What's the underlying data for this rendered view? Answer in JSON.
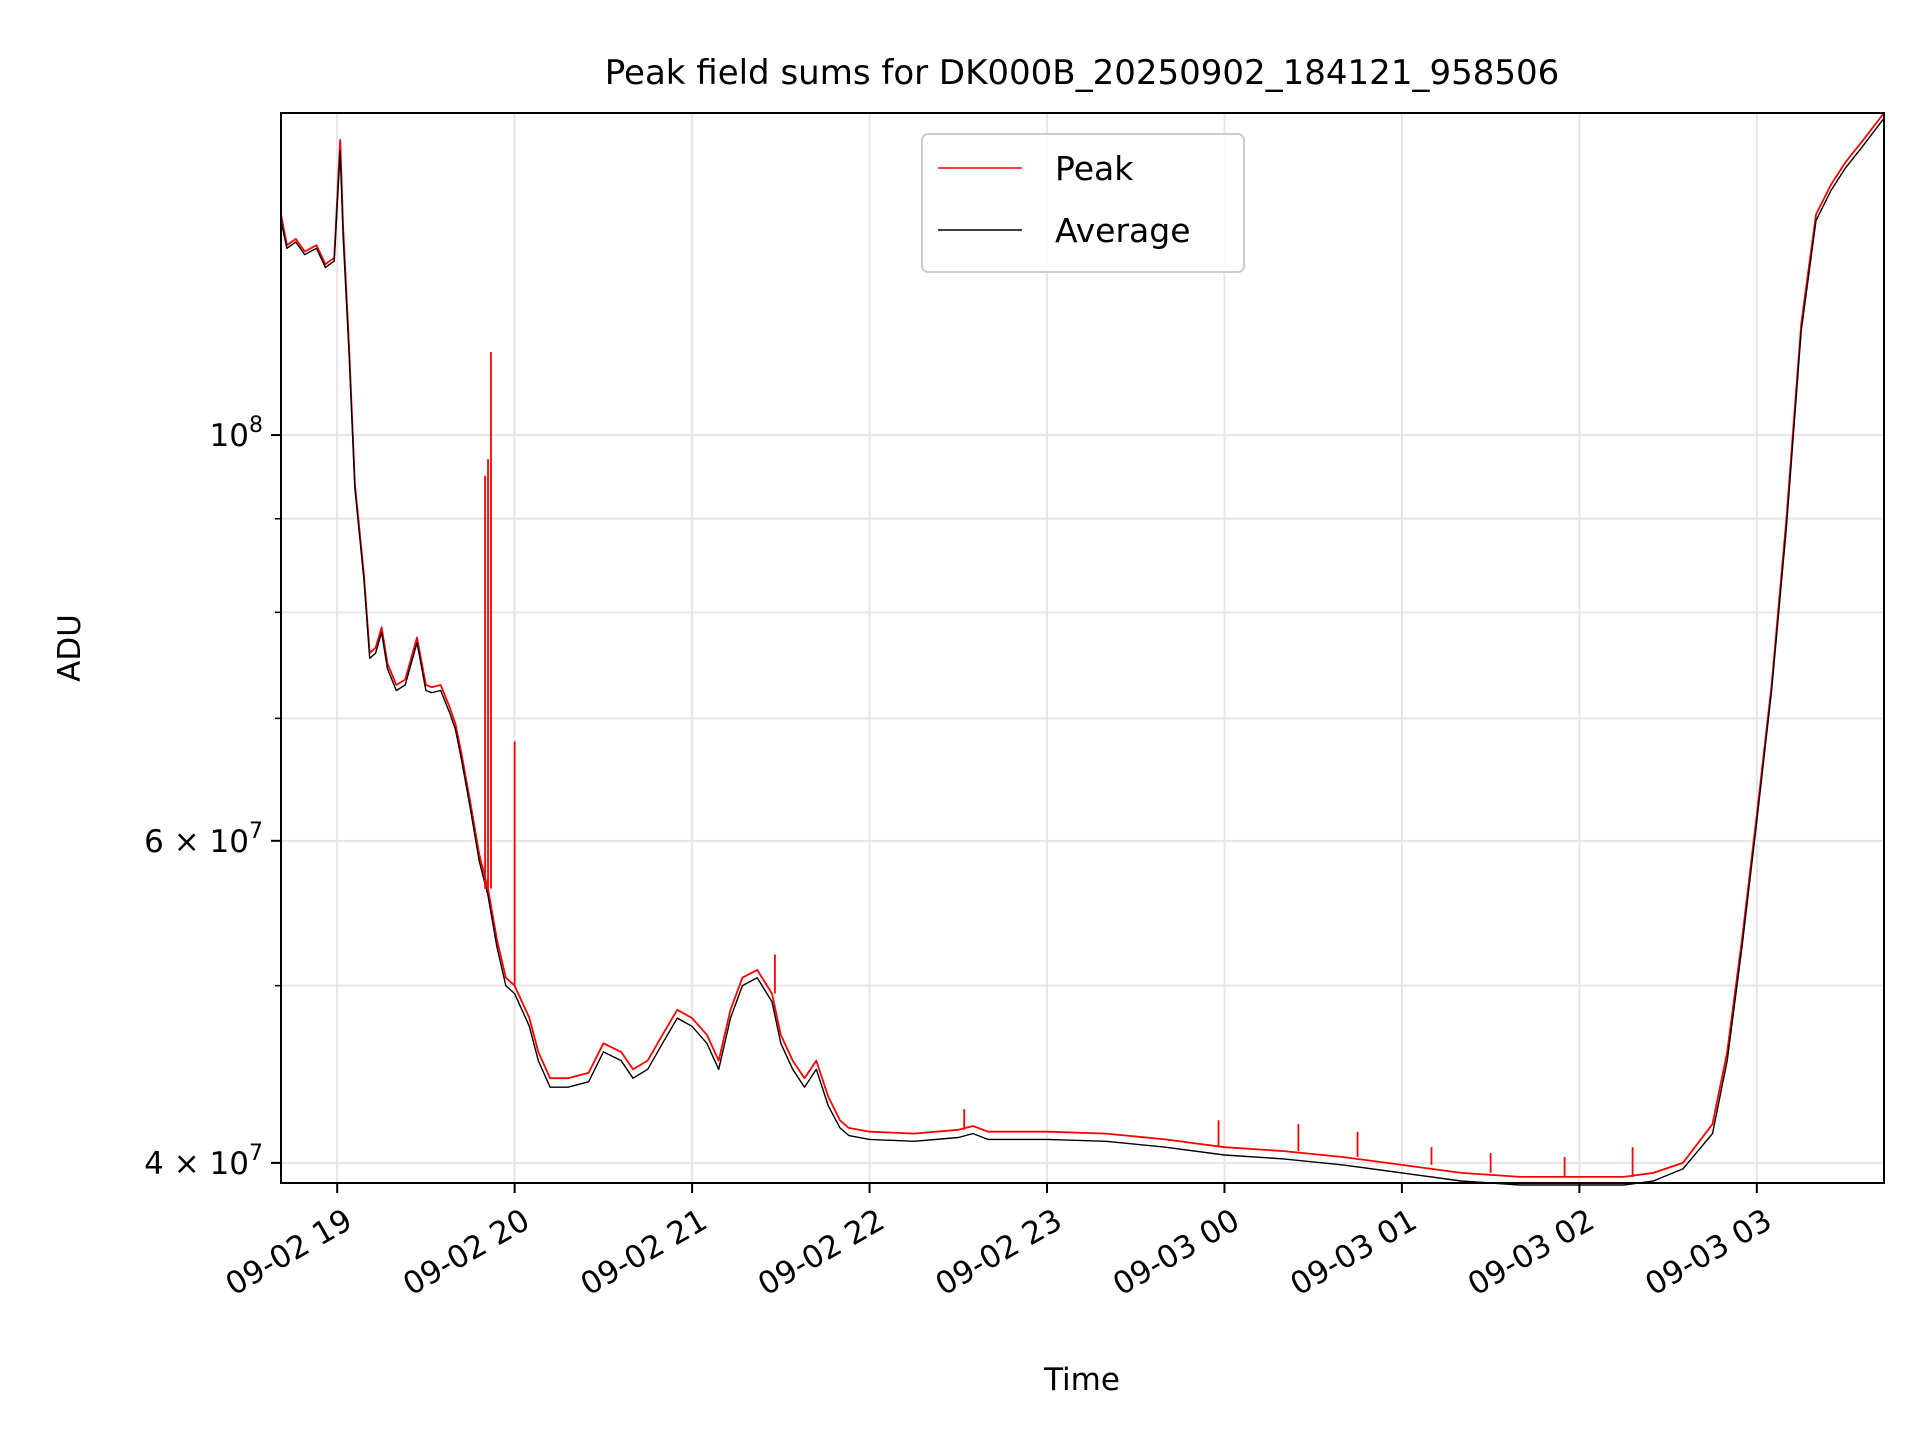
{
  "chart_data": {
    "type": "line",
    "title": "Peak field sums for DK000B_20250902_184121_958506",
    "xlabel": "Time",
    "ylabel": "ADU",
    "y_scale": "log",
    "ylim": [
      39000000,
      150000000
    ],
    "xlim": [
      "2025-09-02 18:41",
      "2025-09-03 03:43"
    ],
    "grid": true,
    "legend_position": "upper center",
    "x_ticks": [
      "09-02 19",
      "09-02 20",
      "09-02 21",
      "09-02 22",
      "09-02 23",
      "09-03 00",
      "09-03 01",
      "09-03 02",
      "09-03 03"
    ],
    "x_tick_times": [
      "2025-09-02 19:00",
      "2025-09-02 20:00",
      "2025-09-02 21:00",
      "2025-09-02 22:00",
      "2025-09-02 23:00",
      "2025-09-03 00:00",
      "2025-09-03 01:00",
      "2025-09-03 02:00",
      "2025-09-03 03:00"
    ],
    "y_major_ticks": [
      {
        "value": 100000000,
        "base": "10",
        "exp": "8"
      },
      {
        "value": 60000000,
        "base": "6 × 10",
        "exp": "7"
      },
      {
        "value": 40000000,
        "base": "4 × 10",
        "exp": "7"
      }
    ],
    "y_minor_ticks": [
      50000000,
      70000000,
      80000000,
      90000000
    ],
    "series": [
      {
        "name": "Peak",
        "color": "#ff0000",
        "x": [
          "2025-09-02 18:41",
          "2025-09-02 18:43",
          "2025-09-02 18:46",
          "2025-09-02 18:49",
          "2025-09-02 18:53",
          "2025-09-02 18:56",
          "2025-09-02 18:59",
          "2025-09-02 19:01",
          "2025-09-02 19:02",
          "2025-09-02 19:04",
          "2025-09-02 19:06",
          "2025-09-02 19:09",
          "2025-09-02 19:11",
          "2025-09-02 19:13",
          "2025-09-02 19:15",
          "2025-09-02 19:17",
          "2025-09-02 19:20",
          "2025-09-02 19:23",
          "2025-09-02 19:27",
          "2025-09-02 19:30",
          "2025-09-02 19:32",
          "2025-09-02 19:35",
          "2025-09-02 19:38",
          "2025-09-02 19:40",
          "2025-09-02 19:42",
          "2025-09-02 19:45",
          "2025-09-02 19:48",
          "2025-09-02 19:51",
          "2025-09-02 19:54",
          "2025-09-02 19:57",
          "2025-09-02 20:00",
          "2025-09-02 20:05",
          "2025-09-02 20:08",
          "2025-09-02 20:12",
          "2025-09-02 20:18",
          "2025-09-02 20:25",
          "2025-09-02 20:30",
          "2025-09-02 20:36",
          "2025-09-02 20:40",
          "2025-09-02 20:45",
          "2025-09-02 20:50",
          "2025-09-02 20:55",
          "2025-09-02 21:00",
          "2025-09-02 21:05",
          "2025-09-02 21:09",
          "2025-09-02 21:13",
          "2025-09-02 21:17",
          "2025-09-02 21:22",
          "2025-09-02 21:27",
          "2025-09-02 21:30",
          "2025-09-02 21:34",
          "2025-09-02 21:38",
          "2025-09-02 21:42",
          "2025-09-02 21:46",
          "2025-09-02 21:50",
          "2025-09-02 21:53",
          "2025-09-02 22:00",
          "2025-09-02 22:15",
          "2025-09-02 22:30",
          "2025-09-02 22:35",
          "2025-09-02 22:40",
          "2025-09-02 23:00",
          "2025-09-02 23:20",
          "2025-09-02 23:40",
          "2025-09-03 00:00",
          "2025-09-03 00:20",
          "2025-09-03 00:40",
          "2025-09-03 01:00",
          "2025-09-03 01:20",
          "2025-09-03 01:40",
          "2025-09-03 02:00",
          "2025-09-03 02:15",
          "2025-09-03 02:25",
          "2025-09-03 02:35",
          "2025-09-03 02:45",
          "2025-09-03 02:50",
          "2025-09-03 02:55",
          "2025-09-03 03:00",
          "2025-09-03 03:05",
          "2025-09-03 03:10",
          "2025-09-03 03:15",
          "2025-09-03 03:20",
          "2025-09-03 03:25",
          "2025-09-03 03:30",
          "2025-09-03 03:36",
          "2025-09-03 03:43"
        ],
        "y": [
          132000000,
          127000000,
          128000000,
          126000000,
          127000000,
          124000000,
          125000000,
          145000000,
          130000000,
          112000000,
          94000000,
          84000000,
          76000000,
          76500000,
          78500000,
          75000000,
          73000000,
          73500000,
          77500000,
          73000000,
          72800000,
          73000000,
          71000000,
          69500000,
          67000000,
          63000000,
          59000000,
          56500000,
          53000000,
          50500000,
          50000000,
          48000000,
          46000000,
          44500000,
          44500000,
          44800000,
          46500000,
          46000000,
          45000000,
          45500000,
          47000000,
          48500000,
          48000000,
          47000000,
          45500000,
          48500000,
          50500000,
          51000000,
          49500000,
          47000000,
          45500000,
          44500000,
          45500000,
          43500000,
          42200000,
          41800000,
          41600000,
          41500000,
          41700000,
          41900000,
          41600000,
          41600000,
          41500000,
          41200000,
          40800000,
          40600000,
          40300000,
          39900000,
          39500000,
          39300000,
          39300000,
          39300000,
          39500000,
          40000000,
          42000000,
          46000000,
          53000000,
          62000000,
          73000000,
          90000000,
          115000000,
          132000000,
          137000000,
          141000000,
          145000000,
          150000000
        ]
      },
      {
        "name": "Average",
        "color": "#000000",
        "x": [
          "2025-09-02 18:41",
          "2025-09-02 18:43",
          "2025-09-02 18:46",
          "2025-09-02 18:49",
          "2025-09-02 18:53",
          "2025-09-02 18:56",
          "2025-09-02 18:59",
          "2025-09-02 19:01",
          "2025-09-02 19:02",
          "2025-09-02 19:04",
          "2025-09-02 19:06",
          "2025-09-02 19:09",
          "2025-09-02 19:11",
          "2025-09-02 19:13",
          "2025-09-02 19:15",
          "2025-09-02 19:17",
          "2025-09-02 19:20",
          "2025-09-02 19:23",
          "2025-09-02 19:27",
          "2025-09-02 19:30",
          "2025-09-02 19:32",
          "2025-09-02 19:35",
          "2025-09-02 19:38",
          "2025-09-02 19:40",
          "2025-09-02 19:42",
          "2025-09-02 19:45",
          "2025-09-02 19:48",
          "2025-09-02 19:51",
          "2025-09-02 19:54",
          "2025-09-02 19:57",
          "2025-09-02 20:00",
          "2025-09-02 20:05",
          "2025-09-02 20:08",
          "2025-09-02 20:12",
          "2025-09-02 20:18",
          "2025-09-02 20:25",
          "2025-09-02 20:30",
          "2025-09-02 20:36",
          "2025-09-02 20:40",
          "2025-09-02 20:45",
          "2025-09-02 20:50",
          "2025-09-02 20:55",
          "2025-09-02 21:00",
          "2025-09-02 21:05",
          "2025-09-02 21:09",
          "2025-09-02 21:13",
          "2025-09-02 21:17",
          "2025-09-02 21:22",
          "2025-09-02 21:27",
          "2025-09-02 21:30",
          "2025-09-02 21:34",
          "2025-09-02 21:38",
          "2025-09-02 21:42",
          "2025-09-02 21:46",
          "2025-09-02 21:50",
          "2025-09-02 21:53",
          "2025-09-02 22:00",
          "2025-09-02 22:15",
          "2025-09-02 22:30",
          "2025-09-02 22:35",
          "2025-09-02 22:40",
          "2025-09-02 23:00",
          "2025-09-02 23:20",
          "2025-09-02 23:40",
          "2025-09-03 00:00",
          "2025-09-03 00:20",
          "2025-09-03 00:40",
          "2025-09-03 01:00",
          "2025-09-03 01:20",
          "2025-09-03 01:40",
          "2025-09-03 02:00",
          "2025-09-03 02:15",
          "2025-09-03 02:25",
          "2025-09-03 02:35",
          "2025-09-03 02:45",
          "2025-09-03 02:50",
          "2025-09-03 02:55",
          "2025-09-03 03:00",
          "2025-09-03 03:05",
          "2025-09-03 03:10",
          "2025-09-03 03:15",
          "2025-09-03 03:20",
          "2025-09-03 03:25",
          "2025-09-03 03:30",
          "2025-09-03 03:36",
          "2025-09-03 03:43"
        ],
        "y": [
          131000000,
          126500000,
          127500000,
          125500000,
          126500000,
          123500000,
          124500000,
          143000000,
          128500000,
          111000000,
          93500000,
          83500000,
          75500000,
          76000000,
          78000000,
          74500000,
          72500000,
          73000000,
          77000000,
          72500000,
          72300000,
          72500000,
          70500000,
          69000000,
          66500000,
          62500000,
          58500000,
          56000000,
          52500000,
          50000000,
          49500000,
          47500000,
          45500000,
          44000000,
          44000000,
          44300000,
          46000000,
          45500000,
          44500000,
          45000000,
          46500000,
          48000000,
          47500000,
          46500000,
          45000000,
          48000000,
          50000000,
          50500000,
          49000000,
          46500000,
          45000000,
          44000000,
          45000000,
          43000000,
          41800000,
          41400000,
          41200000,
          41100000,
          41300000,
          41500000,
          41200000,
          41200000,
          41100000,
          40800000,
          40400000,
          40200000,
          39900000,
          39500000,
          39100000,
          38900000,
          38900000,
          38900000,
          39100000,
          39700000,
          41500000,
          45500000,
          52500000,
          61500000,
          72500000,
          89000000,
          114000000,
          131000000,
          136000000,
          140000000,
          144000000,
          149000000
        ]
      }
    ],
    "spikes": [
      {
        "x": "2025-09-02 19:52",
        "y": 111000000
      },
      {
        "x": "2025-09-02 19:51",
        "y": 97000000
      },
      {
        "x": "2025-09-02 19:50",
        "y": 95000000
      },
      {
        "x": "2025-09-02 20:00",
        "y": 68000000
      },
      {
        "x": "2025-09-02 21:28",
        "y": 52000000
      },
      {
        "x": "2025-09-02 22:32",
        "y": 42800000
      },
      {
        "x": "2025-09-02 23:58",
        "y": 42200000
      },
      {
        "x": "2025-09-03 00:25",
        "y": 42000000
      },
      {
        "x": "2025-09-03 00:45",
        "y": 41600000
      },
      {
        "x": "2025-09-03 01:10",
        "y": 40800000
      },
      {
        "x": "2025-09-03 01:30",
        "y": 40500000
      },
      {
        "x": "2025-09-03 01:55",
        "y": 40300000
      },
      {
        "x": "2025-09-03 02:18",
        "y": 40800000
      }
    ]
  }
}
